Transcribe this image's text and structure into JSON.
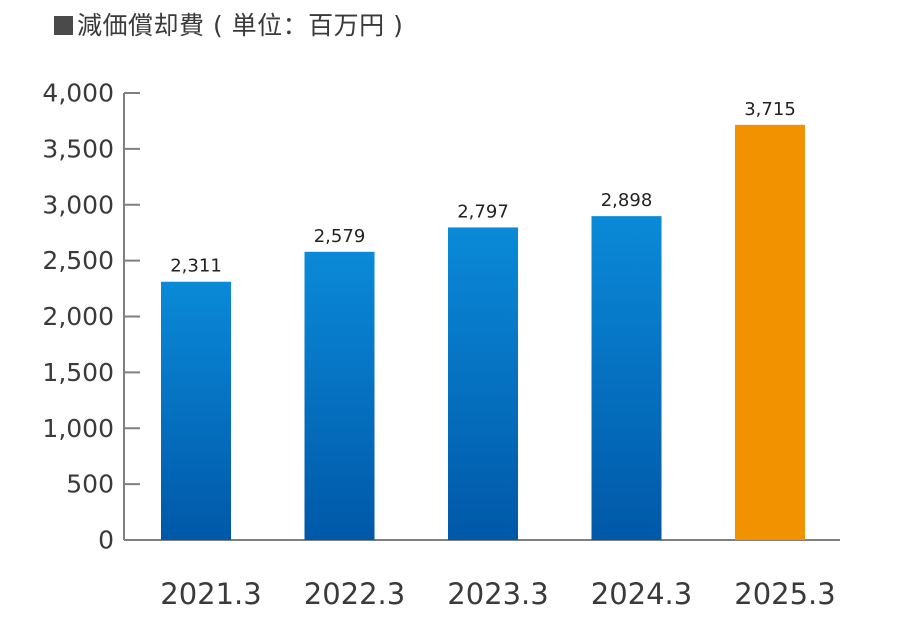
{
  "title": "減価償却費 ( 単位：百万円 )",
  "colors": {
    "bar_top": "#0a8ad8",
    "bar_bottom": "#0058a8",
    "highlight": "#f39200",
    "axis": "#7f7f7f",
    "title_marker": "#4a4a4a"
  },
  "chart_data": {
    "type": "bar",
    "title": "減価償却費 ( 単位：百万円 )",
    "categories": [
      "2021.3",
      "2022.3",
      "2023.3",
      "2024.3",
      "2025.3"
    ],
    "values": [
      2311,
      2579,
      2797,
      2898,
      3715
    ],
    "data_labels": [
      "2,311",
      "2,579",
      "2,797",
      "2,898",
      "3,715"
    ],
    "highlight_index": 4,
    "ylim": [
      0,
      4000
    ],
    "yticks": [
      0,
      500,
      1000,
      1500,
      2000,
      2500,
      3000,
      3500,
      4000
    ],
    "ytick_labels": [
      "0",
      "500",
      "1,000",
      "1,500",
      "2,000",
      "2,500",
      "3,000",
      "3,500",
      "4,000"
    ],
    "xlabel": "",
    "ylabel": "",
    "grid": false,
    "legend": "none"
  }
}
